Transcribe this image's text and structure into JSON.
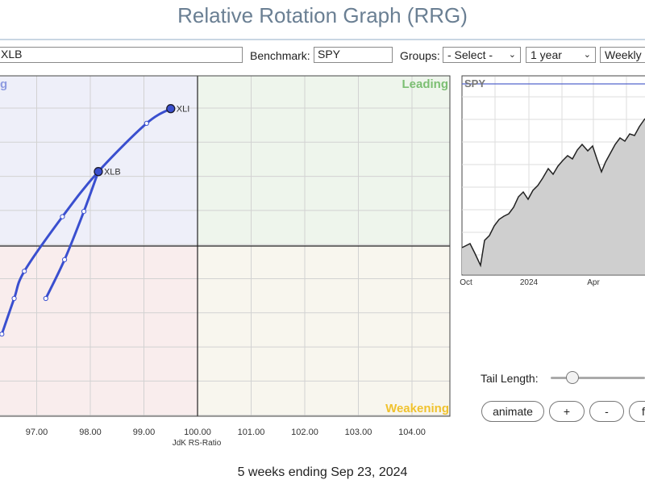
{
  "title": "Relative Rotation Graph (RRG)",
  "toolbar": {
    "symbols_value": "XLB",
    "benchmark_label": "Benchmark:",
    "benchmark_value": "SPY",
    "groups_label": "Groups:",
    "groups_value": "- Select -",
    "period_value": "1 year",
    "frequency_value": "Weekly"
  },
  "quadrants": {
    "improving": "g",
    "leading": "Leading",
    "weakening": "Weakening"
  },
  "colors": {
    "improving_bg": "#eeeff9",
    "leading_bg": "#eef5ec",
    "lagging_bg": "#f9eded",
    "weakening_bg": "#f8f6ee",
    "tail_color": "#3a4fcf",
    "leading_text": "#7cbf73",
    "weakening_text": "#f0c22e",
    "improving_text": "#8e9be0"
  },
  "rrg_axis": {
    "xlabel": "JdK RS-Ratio",
    "x_ticks": [
      "97.00",
      "98.00",
      "99.00",
      "100.00",
      "101.00",
      "102.00",
      "103.00",
      "104.00"
    ]
  },
  "securities": [
    {
      "symbol": "XLI",
      "tail": [
        {
          "x": 96.35,
          "y": 99.16
        },
        {
          "x": 96.58,
          "y": 99.5
        },
        {
          "x": 96.77,
          "y": 99.76
        },
        {
          "x": 97.48,
          "y": 100.28
        },
        {
          "x": 98.15,
          "y": 100.71
        },
        {
          "x": 99.05,
          "y": 101.17
        },
        {
          "x": 99.5,
          "y": 101.31
        }
      ]
    },
    {
      "symbol": "XLB",
      "tail": [
        {
          "x": 97.17,
          "y": 99.5
        },
        {
          "x": 97.52,
          "y": 99.87
        },
        {
          "x": 97.88,
          "y": 100.33
        },
        {
          "x": 98.15,
          "y": 100.71
        }
      ]
    }
  ],
  "mini_chart": {
    "symbol": "SPY",
    "x_labels": [
      "Oct",
      "2024",
      "Apr"
    ]
  },
  "controls": {
    "tail_length_label": "Tail Length:",
    "animate_label": "animate",
    "plus_label": "+",
    "minus_label": "-",
    "more_label": "f"
  },
  "footer": "5 weeks ending Sep 23, 2024"
}
